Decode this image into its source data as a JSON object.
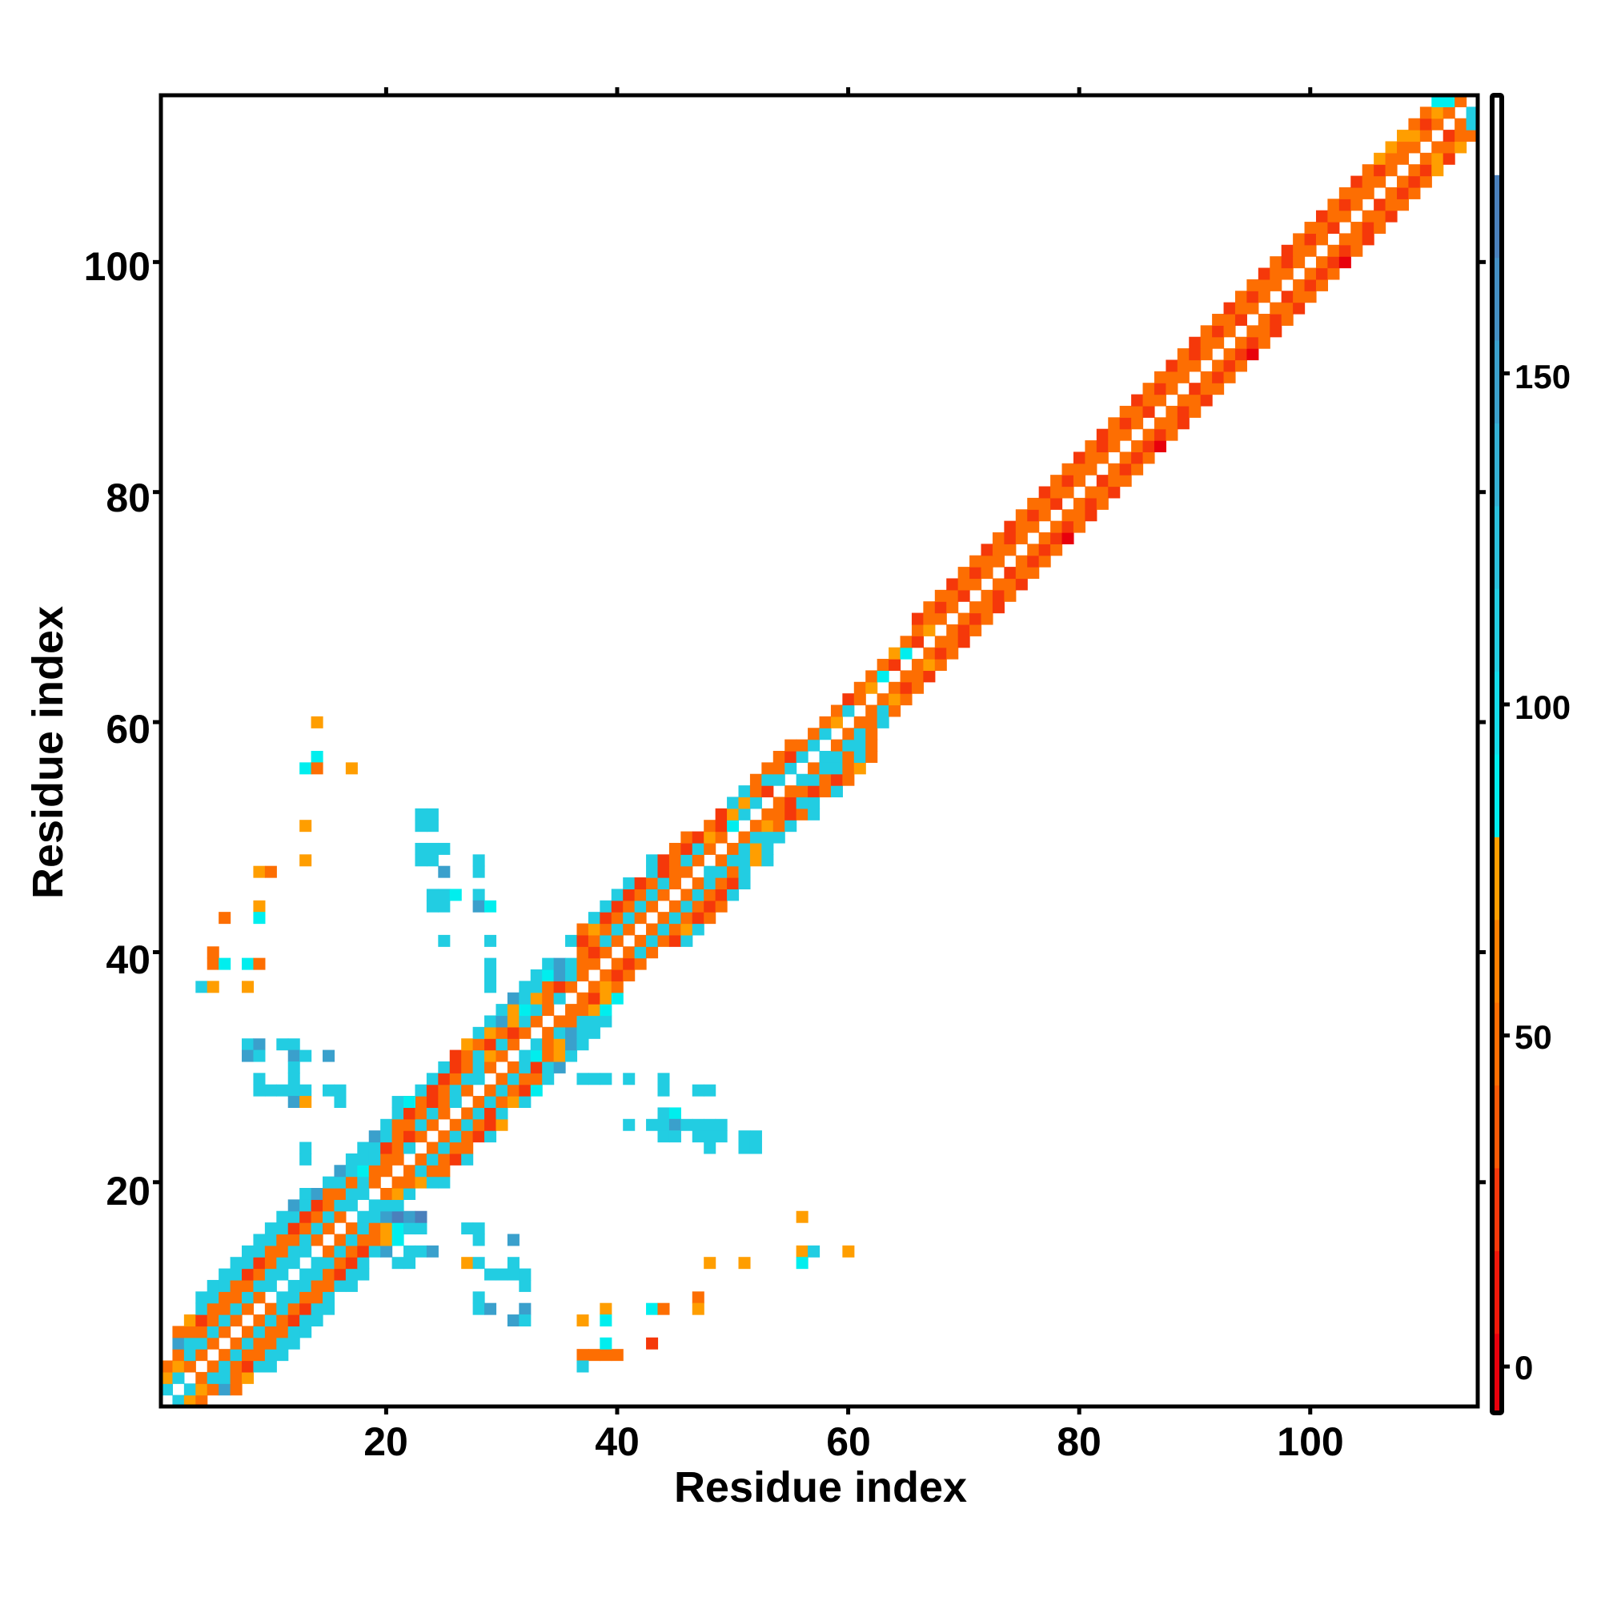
{
  "chart_data": {
    "type": "heatmap",
    "title": "",
    "xlabel": "Residue index",
    "ylabel": "Residue index",
    "xlim": [
      0.5,
      114.5
    ],
    "ylim": [
      0.5,
      114.5
    ],
    "xticks": [
      "20",
      "40",
      "60",
      "80",
      "100"
    ],
    "yticks": [
      "20",
      "40",
      "60",
      "80",
      "100"
    ],
    "grid": false,
    "colorbar": {
      "placement": "right",
      "range": [
        -7,
        192
      ],
      "ticks": [
        "0",
        "50",
        "100",
        "150"
      ],
      "scale": [
        [
          -7.5,
          5,
          "#e8000c"
        ],
        [
          5,
          17.5,
          "#f0180a"
        ],
        [
          17.5,
          30,
          "#f5380a"
        ],
        [
          30,
          42.5,
          "#fa5a06"
        ],
        [
          42.5,
          55,
          "#fd6e02"
        ],
        [
          55,
          67.5,
          "#ff8000"
        ],
        [
          67.5,
          80,
          "#ff9e00"
        ],
        [
          80,
          92.5,
          "#00eeee"
        ],
        [
          92.5,
          105,
          "#14dcea"
        ],
        [
          105,
          117.5,
          "#22cde2"
        ],
        [
          117.5,
          130,
          "#2ac0dc"
        ],
        [
          130,
          142.5,
          "#34b0d4"
        ],
        [
          142.5,
          155,
          "#3aa0cc"
        ],
        [
          155,
          167.5,
          "#4490c4"
        ],
        [
          167.5,
          180,
          "#4a80bc"
        ],
        [
          180,
          192.5,
          "#ffffff"
        ]
      ]
    },
    "value_codes": {
      "r": 0,
      "R": 25,
      "o": 48,
      "O": 60,
      "a": 72,
      "c": 85,
      "C": 110,
      "b": 148,
      "B": 170
    },
    "rows": [
      [
        1,
        1,
        ".Cao"
      ],
      [
        2,
        1,
        "C.Caobo"
      ],
      [
        3,
        1,
        "aC.oCCoa"
      ],
      [
        4,
        1,
        "oao.oCoRCC"
      ],
      [
        5,
        2,
        "oCo.oCooCC"
      ],
      [
        6,
        2,
        "bCCo.oCooCC"
      ],
      [
        7,
        2,
        "oooCo.oCooCC"
      ],
      [
        8,
        3,
        "aRoCo.oCoRCC"
      ],
      [
        9,
        4,
        "CooCo.oCoRCC"
      ],
      [
        10,
        4,
        "CCooCo.CCooC"
      ],
      [
        11,
        5,
        "CCooCC.CCooCC"
      ],
      [
        12,
        6,
        "CCRoCC.CCoRCC"
      ],
      [
        13,
        7,
        "CCRoCC.CCoRC"
      ],
      [
        14,
        8,
        "CCooCC.oCoRCb.CCb"
      ],
      [
        15,
        9,
        "CCooCo.oCooac"
      ],
      [
        16,
        10,
        "CCRoCo.oCoacCC"
      ],
      [
        17,
        11,
        "CCRoCo.CCbBbB"
      ],
      [
        18,
        12,
        "bCRoCC.CCC"
      ],
      [
        19,
        13,
        "CbooCC.oaC"
      ],
      [
        20,
        15,
        "CCoCo.ooaCC"
      ],
      [
        21,
        16,
        "bCcoo.oCoo"
      ],
      [
        22,
        17,
        "CCCoo.oCoRC"
      ],
      [
        23,
        18,
        "CCRoC.oCoo"
      ],
      [
        24,
        19,
        "bCoRo.oCoRC"
      ],
      [
        25,
        20,
        "CooCo.oCoRa"
      ],
      [
        26,
        21,
        "CRoCo.oCRC"
      ],
      [
        27,
        22,
        "ooRoC.oCoaC"
      ],
      [
        28,
        23,
        "CRoCo.oCoRc"
      ],
      [
        29,
        24,
        "CRoCC.oCooC"
      ],
      [
        30,
        25,
        "CRoCo.oCRCb"
      ],
      [
        31,
        26,
        "RoCao.CcoaC"
      ],
      [
        32,
        27,
        "aoRCo.CoabC"
      ],
      [
        33,
        28,
        "CaoRo.oCbCC"
      ],
      [
        34,
        29,
        "CbaCo.ooCCC"
      ],
      [
        35,
        30,
        "CacCo.ooac"
      ],
      [
        36,
        31,
        "bCaoC.oRac"
      ],
      [
        37,
        32,
        "CCoRo.oao"
      ],
      [
        38,
        33,
        "CcbCo.oRo"
      ],
      [
        39,
        34,
        "CbCoo.oRo"
      ],
      [
        40,
        35,
        "..oRo.oCo"
      ],
      [
        41,
        36,
        "CRoCo.oCoRC"
      ],
      [
        42,
        37,
        "oaoCo.oCoaC"
      ],
      [
        43,
        38,
        "CRoCo.oCoRo"
      ],
      [
        44,
        39,
        "CRoCo.oCoRo"
      ],
      [
        45,
        40,
        "CRoCo.oCoRC"
      ],
      [
        46,
        41,
        "CRoCo.oCoRC"
      ],
      [
        47,
        42,
        ".CRoo.CCoC"
      ],
      [
        48,
        43,
        "CRoCo.oCCaC"
      ],
      [
        49,
        44,
        ".oRCo.oCaC"
      ],
      [
        50,
        45,
        ".oRao.oCCC"
      ],
      [
        51,
        46,
        "..oRc.oaoC"
      ],
      [
        52,
        47,
        "..RaC.ooRoC"
      ],
      [
        53,
        48,
        "..CaC.oRCC"
      ],
      [
        54,
        49,
        "..CoR.ooRoC"
      ],
      [
        55,
        50,
        "..oCC.CCoRo"
      ],
      [
        56,
        51,
        "..ooC.oCCoa"
      ],
      [
        57,
        52,
        "..oRC.CCoCo"
      ],
      [
        58,
        53,
        "..ooC.oCCo"
      ],
      [
        59,
        54,
        "...oC.oCo"
      ],
      [
        60,
        55,
        "...oa.ooC"
      ],
      [
        61,
        56,
        "...oC.oCo"
      ],
      [
        62,
        57,
        "...Ro.oao"
      ],
      [
        63,
        58,
        "...oa.oRo"
      ],
      [
        64,
        59,
        "...oc.ooR"
      ],
      [
        65,
        60,
        "...oR.oao"
      ],
      [
        66,
        61,
        "...ac.oRo"
      ],
      [
        67,
        62,
        "...oR.ooR"
      ],
      [
        68,
        63,
        "...oa.oRo"
      ],
      [
        69,
        64,
        "..Roo.oRo"
      ],
      [
        70,
        65,
        "..oRo.ooR"
      ],
      [
        71,
        66,
        "..ooR.oRo"
      ],
      [
        72,
        67,
        "..Roo.ooR"
      ],
      [
        73,
        68,
        "..oRo.Roo"
      ],
      [
        74,
        69,
        "..ooo.oRo"
      ],
      [
        75,
        70,
        "..Roo.oRo"
      ],
      [
        76,
        71,
        "..oRo.oRr"
      ],
      [
        77,
        72,
        "..Roo.oRo"
      ],
      [
        78,
        73,
        "..oRo.ooR"
      ],
      [
        79,
        74,
        "..ooR.oRo"
      ],
      [
        80,
        75,
        "..Roo.ooR"
      ],
      [
        81,
        76,
        "..oRo.Roo"
      ],
      [
        82,
        77,
        "..ooo.oRo"
      ],
      [
        83,
        78,
        "..Roo.oRo"
      ],
      [
        84,
        79,
        "..oRo.oRr"
      ],
      [
        85,
        80,
        "..Roo.oRo"
      ],
      [
        86,
        81,
        "..oRo.ooR"
      ],
      [
        87,
        82,
        "..ooR.oRo"
      ],
      [
        88,
        83,
        "..Roo.ooR"
      ],
      [
        89,
        84,
        "..oRo.Roo"
      ],
      [
        90,
        85,
        "..ooo.oRo"
      ],
      [
        91,
        86,
        "..Roo.oRo"
      ],
      [
        92,
        87,
        "..oRo.oRr"
      ],
      [
        93,
        88,
        "..Roo.oRo"
      ],
      [
        94,
        89,
        "..oRo.ooR"
      ],
      [
        95,
        90,
        "..ooR.oRo"
      ],
      [
        96,
        91,
        "..Roo.ooR"
      ],
      [
        97,
        92,
        "..oRo.Roo"
      ],
      [
        98,
        93,
        "..ooo.oRo"
      ],
      [
        99,
        94,
        "..Roo.oRo"
      ],
      [
        100,
        95,
        "..oRo.oRr"
      ],
      [
        101,
        96,
        "..Roo.oRo"
      ],
      [
        102,
        97,
        "..oRo.ooR"
      ],
      [
        103,
        98,
        "..ooR.oRo"
      ],
      [
        104,
        99,
        "..Roo.ooR"
      ],
      [
        105,
        100,
        "..oRo.Roo"
      ],
      [
        106,
        101,
        "..ooo.oRo"
      ],
      [
        107,
        102,
        "..Roo.oRo"
      ],
      [
        108,
        103,
        "..oRo.oRa"
      ],
      [
        109,
        104,
        "..aoo.oaR"
      ],
      [
        110,
        105,
        "..aoo.ooa"
      ],
      [
        111,
        106,
        "..aao.Roo"
      ],
      [
        112,
        107,
        "..oRo.oC"
      ],
      [
        113,
        108,
        "..oao.C"
      ],
      [
        114,
        109,
        "..cco."
      ]
    ],
    "contacts": [
      [
        14,
        60,
        "a"
      ],
      [
        14,
        57,
        "c"
      ],
      [
        13,
        56,
        "c"
      ],
      [
        14,
        56,
        "o"
      ],
      [
        17,
        56,
        "a"
      ],
      [
        13,
        51,
        "a"
      ],
      [
        13,
        48,
        "a"
      ],
      [
        9,
        47,
        "a"
      ],
      [
        10,
        47,
        "o"
      ],
      [
        6,
        43,
        "o"
      ],
      [
        9,
        44,
        "a"
      ],
      [
        9,
        43,
        "c"
      ],
      [
        5,
        40,
        "o"
      ],
      [
        5,
        39,
        "o"
      ],
      [
        6,
        39,
        "c"
      ],
      [
        8,
        39,
        "c"
      ],
      [
        9,
        39,
        "o"
      ],
      [
        4,
        37,
        "C"
      ],
      [
        5,
        37,
        "a"
      ],
      [
        8,
        37,
        "a"
      ],
      [
        23,
        52,
        "C"
      ],
      [
        24,
        52,
        "C"
      ],
      [
        23,
        51,
        "C"
      ],
      [
        24,
        51,
        "C"
      ],
      [
        23,
        49,
        "C"
      ],
      [
        24,
        49,
        "C"
      ],
      [
        25,
        49,
        "C"
      ],
      [
        23,
        48,
        "C"
      ],
      [
        24,
        48,
        "C"
      ],
      [
        25,
        47,
        "b"
      ],
      [
        28,
        48,
        "C"
      ],
      [
        28,
        47,
        "C"
      ],
      [
        24,
        45,
        "C"
      ],
      [
        25,
        45,
        "C"
      ],
      [
        26,
        45,
        "c"
      ],
      [
        24,
        44,
        "C"
      ],
      [
        25,
        44,
        "C"
      ],
      [
        28,
        45,
        "C"
      ],
      [
        28,
        44,
        "b"
      ],
      [
        29,
        44,
        "c"
      ],
      [
        25,
        41,
        "C"
      ],
      [
        29,
        41,
        "C"
      ],
      [
        29,
        39,
        "C"
      ],
      [
        29,
        38,
        "C"
      ],
      [
        29,
        37,
        "C"
      ],
      [
        8,
        32,
        "C"
      ],
      [
        9,
        32,
        "b"
      ],
      [
        8,
        31,
        "b"
      ],
      [
        9,
        31,
        "C"
      ],
      [
        11,
        32,
        "C"
      ],
      [
        12,
        32,
        "C"
      ],
      [
        12,
        31,
        "b"
      ],
      [
        13,
        31,
        "C"
      ],
      [
        15,
        31,
        "b"
      ],
      [
        12,
        30,
        "C"
      ],
      [
        12,
        29,
        "C"
      ],
      [
        9,
        29,
        "C"
      ],
      [
        9,
        28,
        "C"
      ],
      [
        10,
        28,
        "C"
      ],
      [
        11,
        28,
        "C"
      ],
      [
        12,
        28,
        "C"
      ],
      [
        13,
        28,
        "C"
      ],
      [
        15,
        28,
        "C"
      ],
      [
        16,
        28,
        "C"
      ],
      [
        12,
        27,
        "b"
      ],
      [
        13,
        27,
        "a"
      ],
      [
        16,
        27,
        "C"
      ],
      [
        13,
        23,
        "C"
      ],
      [
        13,
        22,
        "C"
      ],
      [
        37,
        29,
        "C"
      ],
      [
        38,
        29,
        "C"
      ],
      [
        39,
        29,
        "C"
      ],
      [
        41,
        29,
        "C"
      ],
      [
        44,
        29,
        "C"
      ],
      [
        44,
        28,
        "C"
      ],
      [
        47,
        28,
        "C"
      ],
      [
        48,
        28,
        "C"
      ],
      [
        41,
        25,
        "C"
      ],
      [
        44,
        26,
        "C"
      ],
      [
        45,
        26,
        "c"
      ],
      [
        43,
        25,
        "C"
      ],
      [
        44,
        25,
        "C"
      ],
      [
        45,
        25,
        "b"
      ],
      [
        46,
        25,
        "C"
      ],
      [
        47,
        25,
        "C"
      ],
      [
        48,
        25,
        "C"
      ],
      [
        49,
        25,
        "C"
      ],
      [
        44,
        24,
        "C"
      ],
      [
        45,
        24,
        "C"
      ],
      [
        47,
        24,
        "C"
      ],
      [
        48,
        24,
        "C"
      ],
      [
        49,
        24,
        "C"
      ],
      [
        48,
        23,
        "C"
      ],
      [
        51,
        24,
        "C"
      ],
      [
        52,
        24,
        "C"
      ],
      [
        51,
        23,
        "C"
      ],
      [
        52,
        23,
        "C"
      ],
      [
        21,
        27,
        "C"
      ],
      [
        22,
        27,
        "c"
      ],
      [
        27,
        16,
        "C"
      ],
      [
        28,
        16,
        "C"
      ],
      [
        28,
        15,
        "C"
      ],
      [
        31,
        15,
        "b"
      ],
      [
        27,
        13,
        "a"
      ],
      [
        28,
        13,
        "C"
      ],
      [
        31,
        13,
        "C"
      ],
      [
        29,
        12,
        "C"
      ],
      [
        30,
        12,
        "C"
      ],
      [
        31,
        12,
        "C"
      ],
      [
        32,
        12,
        "C"
      ],
      [
        32,
        11,
        "C"
      ],
      [
        28,
        10,
        "C"
      ],
      [
        28,
        9,
        "C"
      ],
      [
        29,
        9,
        "b"
      ],
      [
        31,
        8,
        "b"
      ],
      [
        32,
        9,
        "b"
      ],
      [
        32,
        8,
        "C"
      ],
      [
        37,
        8,
        "a"
      ],
      [
        39,
        9,
        "a"
      ],
      [
        39,
        8,
        "c"
      ],
      [
        43,
        9,
        "c"
      ],
      [
        44,
        9,
        "o"
      ],
      [
        47,
        10,
        "o"
      ],
      [
        47,
        9,
        "a"
      ],
      [
        48,
        13,
        "a"
      ],
      [
        51,
        13,
        "a"
      ],
      [
        56,
        17,
        "a"
      ],
      [
        56,
        14,
        "a"
      ],
      [
        57,
        14,
        "C"
      ],
      [
        56,
        13,
        "c"
      ],
      [
        60,
        14,
        "a"
      ],
      [
        37,
        5,
        "o"
      ],
      [
        38,
        5,
        "o"
      ],
      [
        39,
        5,
        "o"
      ],
      [
        40,
        5,
        "o"
      ],
      [
        39,
        6,
        "c"
      ],
      [
        37,
        4,
        "C"
      ],
      [
        43,
        6,
        "R"
      ],
      [
        21,
        13,
        "C"
      ],
      [
        22,
        13,
        "C"
      ]
    ]
  }
}
